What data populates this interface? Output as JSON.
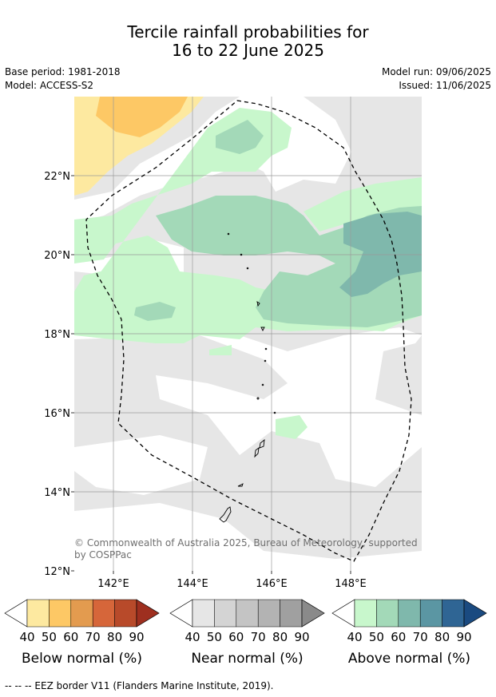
{
  "title": {
    "line1": "Tercile rainfall probabilities for",
    "line2": "16 to 22 June 2025"
  },
  "meta": {
    "base_period": "Base period: 1981-2018",
    "model": "Model: ACCESS-S2",
    "model_run": "Model run: 09/06/2025",
    "issued": "Issued: 11/06/2025"
  },
  "map": {
    "lat_labels": [
      "22°N",
      "20°N",
      "18°N",
      "16°N",
      "14°N",
      "12°N"
    ],
    "lon_labels": [
      "142°E",
      "144°E",
      "146°E",
      "148°E"
    ],
    "copyright": [
      "© Commonwealth of Australia 2025, Bureau of Meteorology, supported",
      "by COSPPac"
    ]
  },
  "legends": [
    {
      "label": "Below normal (%)",
      "ticks": [
        "40",
        "50",
        "60",
        "70",
        "80",
        "90"
      ],
      "colors": [
        "#fde9a0",
        "#fdc865",
        "#e39b4f",
        "#d6663a",
        "#b84a2a",
        "#9e2f1f"
      ]
    },
    {
      "label": "Near normal (%)",
      "ticks": [
        "40",
        "50",
        "60",
        "70",
        "80",
        "90"
      ],
      "colors": [
        "#e6e6e6",
        "#d4d4d4",
        "#c4c4c4",
        "#b3b3b3",
        "#a0a0a0",
        "#8a8a8a"
      ]
    },
    {
      "label": "Above normal (%)",
      "ticks": [
        "40",
        "50",
        "60",
        "70",
        "80",
        "90"
      ],
      "colors": [
        "#c8f7cc",
        "#a3d9b8",
        "#7fb8ac",
        "#5b96a3",
        "#2f6594",
        "#1a4a80"
      ]
    }
  ],
  "footnote": "--  --  -- EEZ border V11 (Flanders Marine Institute, 2019)."
}
